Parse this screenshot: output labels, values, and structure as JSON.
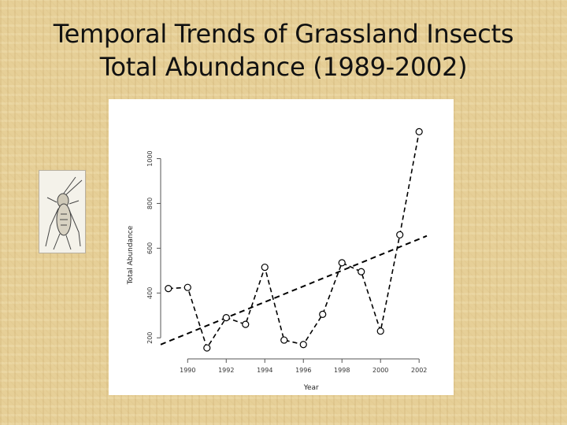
{
  "slide": {
    "title_line1": "Temporal Trends of Grassland Insects",
    "title_line2": "Total Abundance (1989-2002)"
  },
  "colors": {
    "background": "#e6cf97",
    "plot_background": "#ffffff",
    "series": "#000000"
  },
  "illustration": {
    "icon": "grasshopper-icon"
  },
  "chart_data": {
    "type": "line",
    "title": "",
    "xlabel": "Year",
    "ylabel": "Total Abundance",
    "xlim": [
      1988.6,
      2002.4
    ],
    "ylim": [
      120,
      1160
    ],
    "x_ticks": [
      1990,
      1992,
      1994,
      1996,
      1998,
      2000,
      2002
    ],
    "x_tick_labels": [
      "1990",
      "1992",
      "1994",
      "1996",
      "1998",
      "2000",
      "2002"
    ],
    "y_ticks": [
      200,
      400,
      600,
      800,
      1000
    ],
    "y_tick_labels": [
      "200",
      "400",
      "600",
      "800",
      "1000"
    ],
    "grid": false,
    "legend": "none",
    "series": [
      {
        "style": "dashed line with open circle markers",
        "x": [
          1989,
          1990,
          1991,
          1992,
          1993,
          1994,
          1995,
          1996,
          1997,
          1998,
          1999,
          2000,
          2001,
          2002
        ],
        "y": [
          420,
          425,
          155,
          290,
          260,
          515,
          190,
          170,
          305,
          535,
          495,
          230,
          660,
          1120
        ]
      },
      {
        "style": "dashed linear trend line",
        "x": [
          1988.6,
          2002.4
        ],
        "y": [
          170,
          655
        ]
      }
    ]
  }
}
